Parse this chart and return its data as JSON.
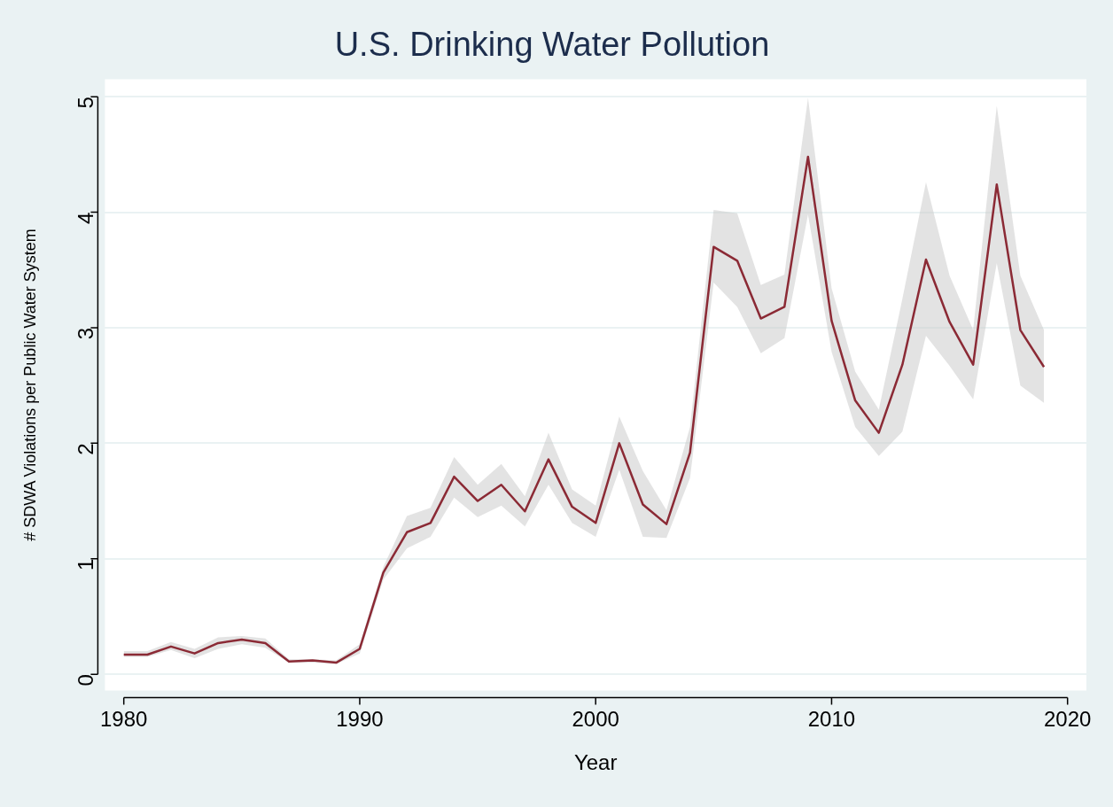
{
  "chart_data": {
    "type": "line",
    "title": "U.S. Drinking Water Pollution",
    "xlabel": "Year",
    "ylabel": "# SDWA Violations per Public Water System",
    "x": [
      1980,
      1981,
      1982,
      1983,
      1984,
      1985,
      1986,
      1987,
      1988,
      1989,
      1990,
      1991,
      1992,
      1993,
      1994,
      1995,
      1996,
      1997,
      1998,
      1999,
      2000,
      2001,
      2002,
      2003,
      2004,
      2005,
      2006,
      2007,
      2008,
      2009,
      2010,
      2011,
      2012,
      2013,
      2014,
      2015,
      2016,
      2017,
      2018,
      2019
    ],
    "series": [
      {
        "color": "#8b2a35",
        "values": [
          0.17,
          0.17,
          0.24,
          0.18,
          0.27,
          0.3,
          0.27,
          0.11,
          0.12,
          0.1,
          0.22,
          0.88,
          1.23,
          1.31,
          1.71,
          1.5,
          1.64,
          1.41,
          1.86,
          1.45,
          1.31,
          2.0,
          1.47,
          1.3,
          1.92,
          3.7,
          3.58,
          3.08,
          3.18,
          4.48,
          3.06,
          2.37,
          2.09,
          2.68,
          3.59,
          3.05,
          2.68,
          4.24,
          2.98,
          2.66
        ],
        "lower": [
          0.15,
          0.15,
          0.21,
          0.14,
          0.22,
          0.26,
          0.23,
          0.1,
          0.1,
          0.09,
          0.18,
          0.82,
          1.09,
          1.19,
          1.53,
          1.36,
          1.46,
          1.28,
          1.64,
          1.31,
          1.19,
          1.77,
          1.19,
          1.18,
          1.7,
          3.39,
          3.18,
          2.78,
          2.91,
          3.98,
          2.79,
          2.14,
          1.89,
          2.1,
          2.93,
          2.67,
          2.38,
          3.56,
          2.5,
          2.35
        ],
        "upper": [
          0.2,
          0.2,
          0.28,
          0.22,
          0.32,
          0.33,
          0.31,
          0.13,
          0.13,
          0.12,
          0.26,
          0.93,
          1.37,
          1.44,
          1.88,
          1.64,
          1.82,
          1.54,
          2.09,
          1.6,
          1.46,
          2.23,
          1.76,
          1.42,
          2.14,
          4.02,
          3.99,
          3.37,
          3.46,
          4.99,
          3.34,
          2.62,
          2.29,
          3.25,
          4.26,
          3.45,
          2.98,
          4.92,
          3.45,
          2.98
        ]
      }
    ],
    "xlim": [
      1979.2,
      2020.8
    ],
    "xticks": [
      1980,
      1990,
      2000,
      2010,
      2020
    ],
    "ylim": [
      -0.14,
      5.15
    ],
    "yticks": [
      0,
      1,
      2,
      3,
      4,
      5
    ],
    "grid": "y",
    "legend": false,
    "marker": "none",
    "line_style": "solid"
  }
}
